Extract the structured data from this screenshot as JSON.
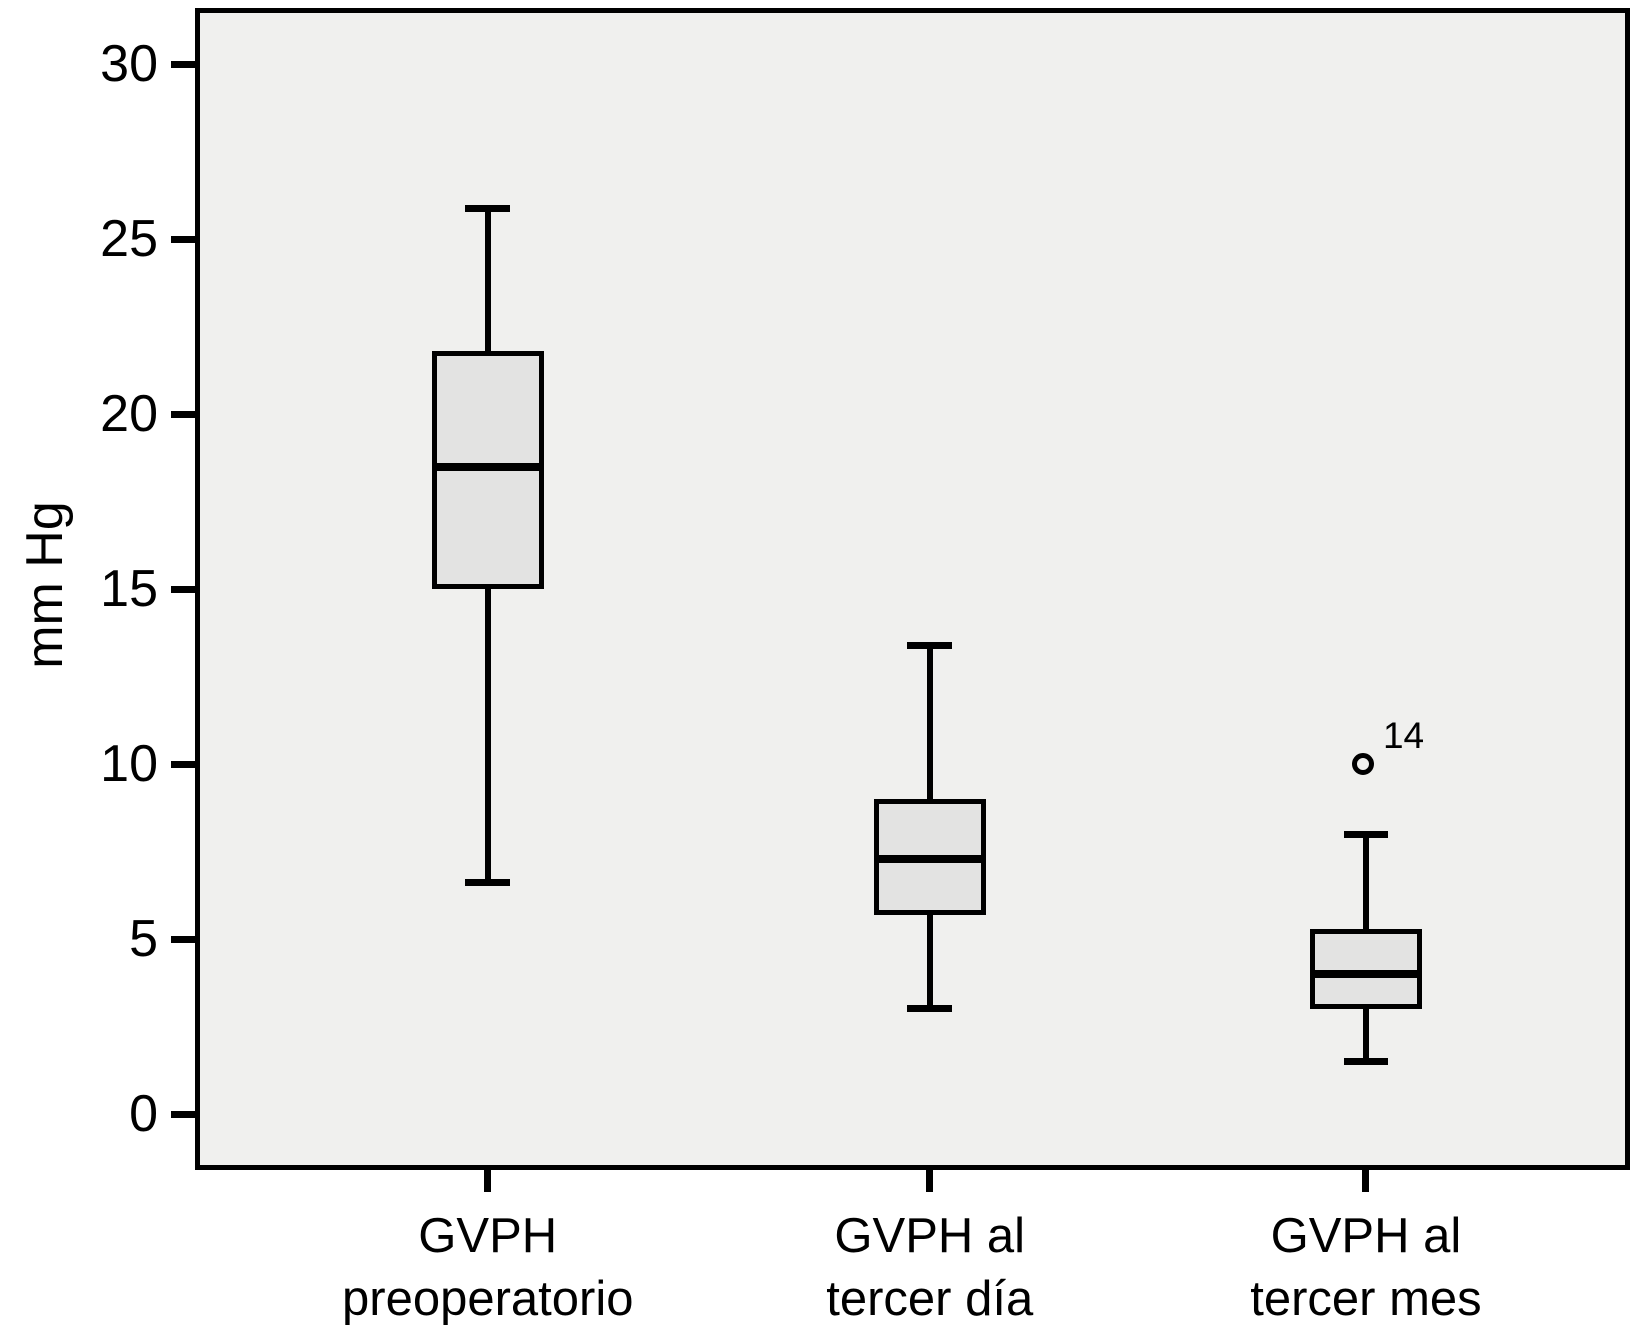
{
  "chart_data": {
    "type": "boxplot",
    "title": "",
    "ylabel": "mm Hg",
    "xlabel": "",
    "yticks": [
      30,
      25,
      20,
      15,
      10,
      5,
      0
    ],
    "ylim": [
      -1.6,
      31.6
    ],
    "grid": false,
    "legend": "none",
    "categories": [
      "GVPH\npreoperatorio",
      "GVPH al\ntercer día",
      "GVPH al\ntercer mes"
    ],
    "series": [
      {
        "name": "GVPH preoperatorio",
        "whisker_low": 6.6,
        "q1": 15.0,
        "median": 18.5,
        "q3": 21.8,
        "whisker_high": 25.9,
        "outliers": []
      },
      {
        "name": "GVPH al tercer día",
        "whisker_low": 3.0,
        "q1": 5.7,
        "median": 7.3,
        "q3": 9.0,
        "whisker_high": 13.4,
        "outliers": []
      },
      {
        "name": "GVPH al tercer mes",
        "whisker_low": 1.5,
        "q1": 3.0,
        "median": 4.0,
        "q3": 5.3,
        "whisker_high": 8.0,
        "outliers": [
          {
            "value": 10.0,
            "label": "14"
          }
        ]
      }
    ],
    "colors": {
      "plot_bg": "#f0f0ee",
      "box_fill": "#e3e3e2",
      "line": "#000000"
    },
    "layout": {
      "centers_frac": [
        0.204,
        0.512,
        0.816
      ],
      "box_width_frac": 0.078,
      "cap_width_frac": 0.031
    }
  }
}
